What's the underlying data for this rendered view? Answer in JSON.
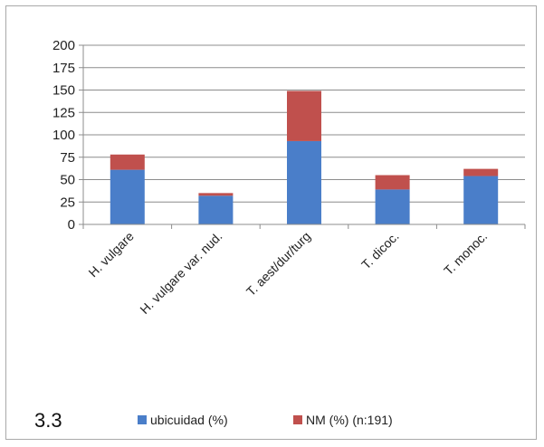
{
  "figure_number": "3.3",
  "chart_data": {
    "type": "bar",
    "stacked": true,
    "categories": [
      "H. vulgare",
      "H. vulgare var. nud.",
      "T. aest/dur/turg",
      "T. dicoc.",
      "T. monoc."
    ],
    "series": [
      {
        "name": "ubicuidad (%)",
        "color": "#4a7ec9",
        "values": [
          61,
          32,
          93,
          39,
          54
        ]
      },
      {
        "name": "NM (%) (n:191)",
        "color": "#c0504d",
        "values": [
          17,
          3,
          56,
          16,
          8
        ]
      }
    ],
    "ylim": [
      0,
      200
    ],
    "yticks": [
      0,
      25,
      50,
      75,
      100,
      125,
      150,
      175,
      200
    ],
    "grid": true,
    "legend_position": "bottom"
  }
}
